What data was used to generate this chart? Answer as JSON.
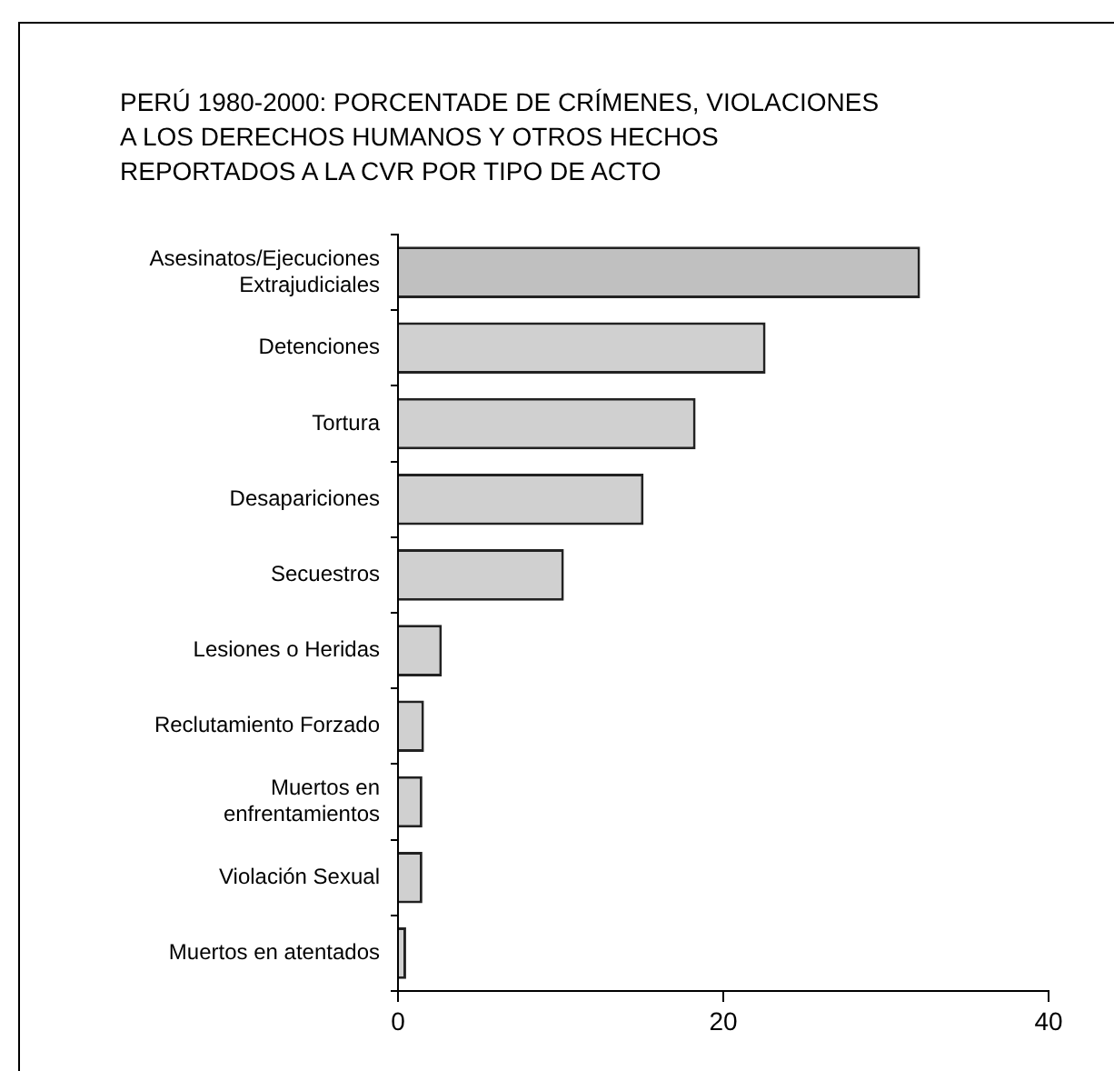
{
  "chart_data": {
    "type": "bar",
    "orientation": "horizontal",
    "title": "PERÚ 1980-2000: PORCENTADE DE CRÍMENES, VIOLACIONES A LOS DERECHOS HUMANOS Y OTROS HECHOS REPORTADOS A LA CVR POR TIPO DE ACTO",
    "categories": [
      "Asesinatos/Ejecuciones Extrajudiciales",
      "Detenciones",
      "Tortura",
      "Desapariciones",
      "Secuestros",
      "Lesiones o Heridas",
      "Reclutamiento Forzado",
      "Muertos en enfrentamientos",
      "Violación Sexual",
      "Muertos en atentados"
    ],
    "values": [
      32.1,
      22.6,
      18.3,
      15.1,
      10.2,
      2.7,
      1.6,
      1.5,
      1.5,
      0.5
    ],
    "colors": [
      "#c0c0c0",
      "#d0d0d0",
      "#d0d0d0",
      "#d0d0d0",
      "#d0d0d0",
      "#d0d0d0",
      "#d0d0d0",
      "#d0d0d0",
      "#d0d0d0",
      "#d0d0d0"
    ],
    "xlim": [
      0,
      40
    ],
    "xticks": [
      0,
      20,
      40
    ]
  }
}
